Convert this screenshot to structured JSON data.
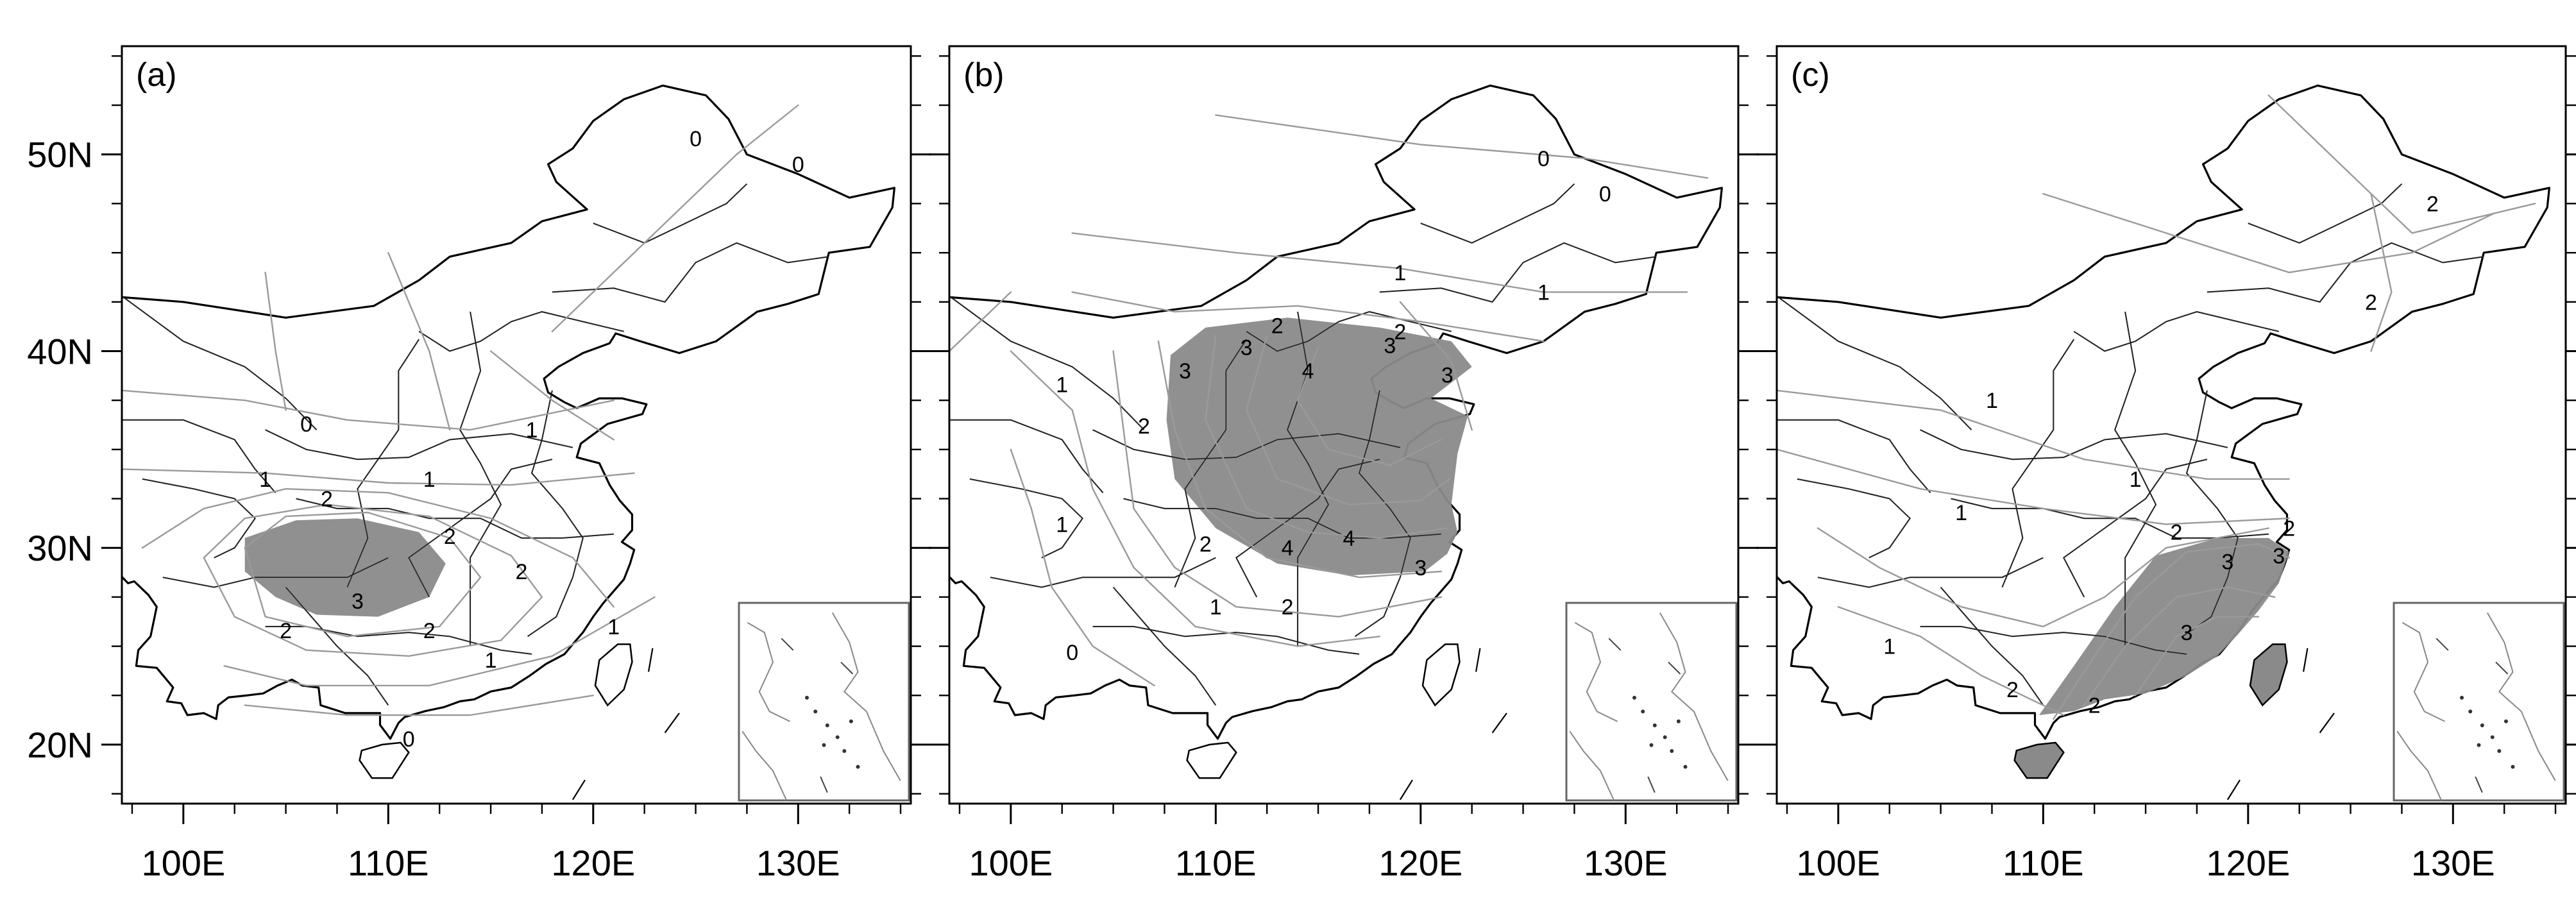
{
  "figure": {
    "lat_ticks": [
      {
        "value": 50,
        "label": "50N"
      },
      {
        "value": 40,
        "label": "40N"
      },
      {
        "value": 30,
        "label": "30N"
      },
      {
        "value": 20,
        "label": "20N"
      }
    ],
    "lon_ticks": [
      {
        "value": 100,
        "label": "100E"
      },
      {
        "value": 110,
        "label": "110E"
      },
      {
        "value": 120,
        "label": "120E"
      },
      {
        "value": 130,
        "label": "130E"
      }
    ],
    "panels": [
      {
        "label": "(a)",
        "shaded_region": "Sichuan–Chongqing–Guizhou area (values above 3)",
        "contour_labels": [
          {
            "text": "0",
            "lon": 125.0,
            "lat": 50.8
          },
          {
            "text": "0",
            "lon": 130.0,
            "lat": 49.5
          },
          {
            "text": "0",
            "lon": 106.0,
            "lat": 36.3
          },
          {
            "text": "1",
            "lon": 117.0,
            "lat": 36.0
          },
          {
            "text": "1",
            "lon": 112.0,
            "lat": 33.5
          },
          {
            "text": "1",
            "lon": 104.0,
            "lat": 33.5
          },
          {
            "text": "2",
            "lon": 107.0,
            "lat": 32.5
          },
          {
            "text": "2",
            "lon": 113.0,
            "lat": 30.6
          },
          {
            "text": "2",
            "lon": 116.5,
            "lat": 28.8
          },
          {
            "text": "3",
            "lon": 108.5,
            "lat": 27.3
          },
          {
            "text": "2",
            "lon": 105.0,
            "lat": 25.8
          },
          {
            "text": "2",
            "lon": 112.0,
            "lat": 25.8
          },
          {
            "text": "1",
            "lon": 115.0,
            "lat": 24.3
          },
          {
            "text": "1",
            "lon": 121.0,
            "lat": 26.0
          },
          {
            "text": "0",
            "lon": 111.0,
            "lat": 20.3
          }
        ],
        "shade": [
          [
            103,
            30.5
          ],
          [
            105.5,
            31.4
          ],
          [
            108.5,
            31.5
          ],
          [
            111.5,
            30.8
          ],
          [
            112.8,
            29.2
          ],
          [
            112,
            27.5
          ],
          [
            109.5,
            26.5
          ],
          [
            106.5,
            26.6
          ],
          [
            104.5,
            27.5
          ],
          [
            103,
            28.8
          ]
        ]
      },
      {
        "label": "(b)",
        "shaded_region": "North China Plain to lower Yangtze (values above 3)",
        "contour_labels": [
          {
            "text": "0",
            "lon": 126.0,
            "lat": 49.8
          },
          {
            "text": "0",
            "lon": 129.0,
            "lat": 48.0
          },
          {
            "text": "1",
            "lon": 119.0,
            "lat": 44.0
          },
          {
            "text": "1",
            "lon": 126.0,
            "lat": 43.0
          },
          {
            "text": "2",
            "lon": 113.0,
            "lat": 41.3
          },
          {
            "text": "2",
            "lon": 119.0,
            "lat": 41.0
          },
          {
            "text": "3",
            "lon": 111.5,
            "lat": 40.2
          },
          {
            "text": "3",
            "lon": 108.5,
            "lat": 39.0
          },
          {
            "text": "3",
            "lon": 118.5,
            "lat": 40.3
          },
          {
            "text": "4",
            "lon": 114.5,
            "lat": 39.0
          },
          {
            "text": "3",
            "lon": 121.3,
            "lat": 38.8
          },
          {
            "text": "1",
            "lon": 102.5,
            "lat": 38.3
          },
          {
            "text": "2",
            "lon": 106.5,
            "lat": 36.2
          },
          {
            "text": "1",
            "lon": 102.5,
            "lat": 31.2
          },
          {
            "text": "2",
            "lon": 109.5,
            "lat": 30.2
          },
          {
            "text": "4",
            "lon": 113.5,
            "lat": 30.0
          },
          {
            "text": "4",
            "lon": 116.5,
            "lat": 30.5
          },
          {
            "text": "3",
            "lon": 120.0,
            "lat": 29.0
          },
          {
            "text": "2",
            "lon": 113.5,
            "lat": 27.0
          },
          {
            "text": "1",
            "lon": 110.0,
            "lat": 27.0
          },
          {
            "text": "0",
            "lon": 103.0,
            "lat": 24.7
          }
        ],
        "shade": [
          [
            107.8,
            39.8
          ],
          [
            109.5,
            41.2
          ],
          [
            113.5,
            41.7
          ],
          [
            118,
            41.2
          ],
          [
            121.5,
            40.5
          ],
          [
            122.5,
            39.2
          ],
          [
            120.5,
            37.6
          ],
          [
            122.3,
            36.7
          ],
          [
            121.8,
            34.8
          ],
          [
            121.5,
            32.2
          ],
          [
            121.8,
            30.8
          ],
          [
            121.3,
            29.7
          ],
          [
            120.2,
            28.8
          ],
          [
            116.5,
            28.6
          ],
          [
            113,
            29.2
          ],
          [
            110,
            31
          ],
          [
            108,
            33.5
          ],
          [
            107.6,
            36.5
          ]
        ]
      },
      {
        "label": "(c)",
        "shaded_region": "South-east China (values above 3)",
        "contour_labels": [
          {
            "text": "2",
            "lon": 129.0,
            "lat": 47.5
          },
          {
            "text": "2",
            "lon": 126.0,
            "lat": 42.5
          },
          {
            "text": "1",
            "lon": 107.5,
            "lat": 37.5
          },
          {
            "text": "1",
            "lon": 114.5,
            "lat": 33.5
          },
          {
            "text": "1",
            "lon": 106.0,
            "lat": 31.8
          },
          {
            "text": "2",
            "lon": 116.5,
            "lat": 30.8
          },
          {
            "text": "2",
            "lon": 122.0,
            "lat": 31.0
          },
          {
            "text": "3",
            "lon": 121.5,
            "lat": 29.6
          },
          {
            "text": "3",
            "lon": 119.0,
            "lat": 29.3
          },
          {
            "text": "3",
            "lon": 117.0,
            "lat": 25.7
          },
          {
            "text": "2",
            "lon": 108.5,
            "lat": 22.8
          },
          {
            "text": "2",
            "lon": 112.5,
            "lat": 22.0
          },
          {
            "text": "1",
            "lon": 102.5,
            "lat": 25.0
          }
        ],
        "shade": [
          [
            109.8,
            21.5
          ],
          [
            111.5,
            24
          ],
          [
            113.5,
            27
          ],
          [
            115.5,
            29.6
          ],
          [
            118.5,
            30.5
          ],
          [
            121,
            30.5
          ],
          [
            122,
            29.8
          ],
          [
            121.5,
            28.2
          ],
          [
            120.5,
            26.8
          ],
          [
            119.5,
            25.6
          ],
          [
            118.5,
            24.5
          ],
          [
            117,
            23.5
          ],
          [
            115,
            22.6
          ],
          [
            113,
            22.3
          ],
          [
            111.5,
            21.7
          ]
        ]
      }
    ]
  }
}
